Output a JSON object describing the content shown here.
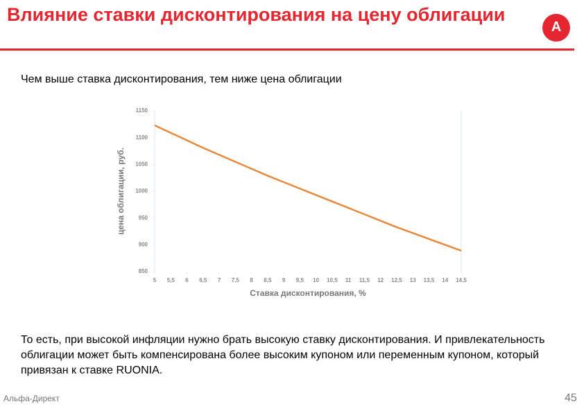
{
  "header": {
    "title": "Влияние ставки дисконтирования на цену облигации",
    "logo": "А"
  },
  "subtitle": "Чем выше ставка дисконтирования, тем ниже цена облигации",
  "body": "То есть, при высокой инфляции нужно брать высокую ставку дисконтирования. И привлекательность облигации может быть компенсирована более высоким купоном или переменным купоном, который привязан к ставке RUONIA.",
  "footer": {
    "brand": "Альфа-Директ",
    "page": "45"
  },
  "chart_data": {
    "type": "line",
    "x_label": "Ставка дисконтирования, %",
    "y_label": "цена облигации, руб.",
    "x": [
      5,
      5.5,
      6,
      6.5,
      7,
      7.5,
      8,
      8.5,
      9,
      9.5,
      10,
      10.5,
      11,
      11.5,
      12,
      12.5,
      13,
      13.5,
      14,
      14.5
    ],
    "series": [
      {
        "name": "цена",
        "color": "#e8883a",
        "values": [
          1123,
          1109,
          1095,
          1081,
          1068,
          1055,
          1042,
          1029,
          1017,
          1005,
          993,
          981,
          969,
          957,
          945,
          933,
          922,
          911,
          900,
          889
        ]
      }
    ],
    "xlim": [
      5,
      14.5
    ],
    "xticks": [
      5,
      {
        "value": 5.5,
        "label": "5,5"
      },
      6,
      {
        "value": 6.5,
        "label": "6,5"
      },
      7,
      {
        "value": 7.5,
        "label": "7,5"
      },
      8,
      {
        "value": 8.5,
        "label": "8,5"
      },
      9,
      {
        "value": 9.5,
        "label": "9,5"
      },
      10,
      {
        "value": 10.5,
        "label": "10,5"
      },
      11,
      {
        "value": 11.5,
        "label": "11,5"
      },
      12,
      {
        "value": 12.5,
        "label": "12,5"
      },
      13,
      {
        "value": 13.5,
        "label": "13,5"
      },
      14,
      {
        "value": 14.5,
        "label": "14,5"
      }
    ],
    "ylim": [
      850,
      1150
    ],
    "yticks": [
      850,
      900,
      950,
      1000,
      1050,
      1100,
      1150
    ]
  }
}
